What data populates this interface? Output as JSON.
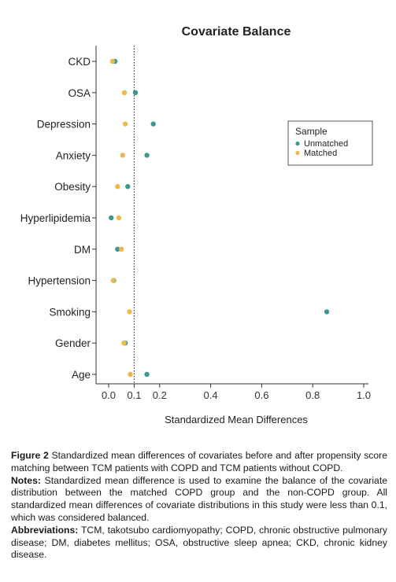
{
  "chart_data": {
    "type": "scatter",
    "title": "Covariate Balance",
    "xlabel": "Standardized Mean Differences",
    "ylabel": "",
    "xlim": [
      0.0,
      1.0
    ],
    "xticks": [
      "0.0",
      "0.1",
      "0.2",
      "0.4",
      "0.6",
      "0.8",
      "1.0"
    ],
    "xtick_values": [
      0.0,
      0.1,
      0.2,
      0.4,
      0.6,
      0.8,
      1.0
    ],
    "threshold_line": 0.1,
    "categories": [
      "CKD",
      "OSA",
      "Depression",
      "Anxiety",
      "Obesity",
      "Hyperlipidemia",
      "DM",
      "Hypertension",
      "Smoking",
      "Gender",
      "Age"
    ],
    "legend_title": "Sample",
    "legend_position": "right",
    "series": [
      {
        "name": "Unmatched",
        "color": "#3a9a93",
        "values": [
          0.025,
          0.105,
          0.175,
          0.15,
          0.075,
          0.01,
          0.035,
          0.02,
          0.855,
          0.065,
          0.15
        ]
      },
      {
        "name": "Matched",
        "color": "#eeb84a",
        "values": [
          0.015,
          0.062,
          0.065,
          0.055,
          0.035,
          0.04,
          0.05,
          0.018,
          0.082,
          0.06,
          0.085
        ]
      }
    ]
  },
  "caption": {
    "figure_label": "Figure 2",
    "figure_text": "Standardized mean differences of covariates before and after propensity score matching between TCM patients with COPD and TCM patients without COPD.",
    "notes_label": "Notes:",
    "notes_text": "Standardized mean difference is used to examine the balance of the covariate distribution between the matched COPD group and the non-COPD group. All standardized mean differences of covariate distributions in this study were less than 0.1, which was considered balanced.",
    "abbrev_label": "Abbreviations:",
    "abbrev_text": "TCM, takotsubo cardiomyopathy; COPD, chronic obstructive pulmonary disease; DM, diabetes mellitus; OSA, obstructive sleep apnea; CKD, chronic kidney disease."
  }
}
